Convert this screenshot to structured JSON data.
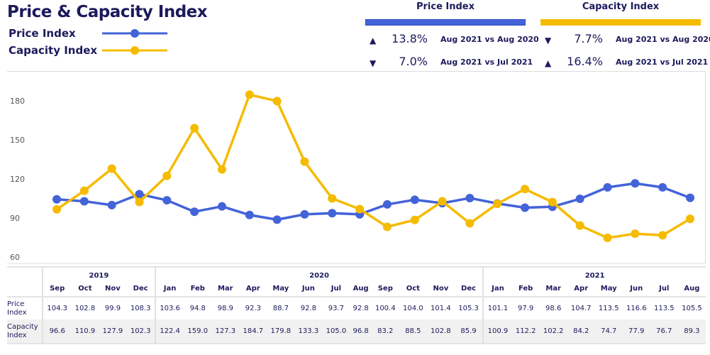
{
  "title": "Price & Capacity Index",
  "legend": [
    {
      "label": "Price Index",
      "color": "#4363d8"
    },
    {
      "label": "Capacity Index",
      "color": "#f5bb00"
    }
  ],
  "kpis": {
    "price": {
      "header": "Price Index",
      "color": "#4363d8",
      "rows": [
        {
          "dir": "up",
          "pct": "13.8%",
          "cmp": "Aug 2021 vs Aug 2020"
        },
        {
          "dir": "down",
          "pct": "7.0%",
          "cmp": "Aug 2021 vs Jul 2021"
        }
      ]
    },
    "capacity": {
      "header": "Capacity Index",
      "color": "#f5bb00",
      "rows": [
        {
          "dir": "down",
          "pct": "7.7%",
          "cmp": "Aug 2021 vs Aug 2020"
        },
        {
          "dir": "up",
          "pct": "16.4%",
          "cmp": "Aug 2021 vs Jul 2021"
        }
      ]
    }
  },
  "chart_data": {
    "type": "line",
    "years": [
      {
        "label": "2019",
        "span": 4
      },
      {
        "label": "2020",
        "span": 12
      },
      {
        "label": "2021",
        "span": 8
      }
    ],
    "categories": [
      "Sep",
      "Oct",
      "Nov",
      "Dec",
      "Jan",
      "Feb",
      "Mar",
      "Apr",
      "May",
      "Jun",
      "Jul",
      "Aug",
      "Sep",
      "Oct",
      "Nov",
      "Dec",
      "Jan",
      "Feb",
      "Mar",
      "Apr",
      "May",
      "Jun",
      "Jul",
      "Aug"
    ],
    "yticks": [
      60,
      90,
      120,
      150,
      180
    ],
    "ylim": [
      60,
      190
    ],
    "grid": false,
    "series": [
      {
        "name": "Price Index",
        "row_label": "Price Index",
        "color": "#4363d8",
        "values": [
          104.3,
          102.8,
          99.9,
          108.3,
          103.6,
          94.8,
          98.9,
          92.3,
          88.7,
          92.8,
          93.7,
          92.8,
          100.4,
          104.0,
          101.4,
          105.3,
          101.1,
          97.9,
          98.6,
          104.7,
          113.5,
          116.6,
          113.5,
          105.5
        ]
      },
      {
        "name": "Capacity Index",
        "row_label": "Capacity Index",
        "color": "#f5bb00",
        "values": [
          96.6,
          110.9,
          127.9,
          102.3,
          122.4,
          159.0,
          127.3,
          184.7,
          179.8,
          133.3,
          105.0,
          96.8,
          83.2,
          88.5,
          102.8,
          85.9,
          100.9,
          112.2,
          102.2,
          84.2,
          74.7,
          77.9,
          76.7,
          89.3
        ]
      }
    ]
  }
}
